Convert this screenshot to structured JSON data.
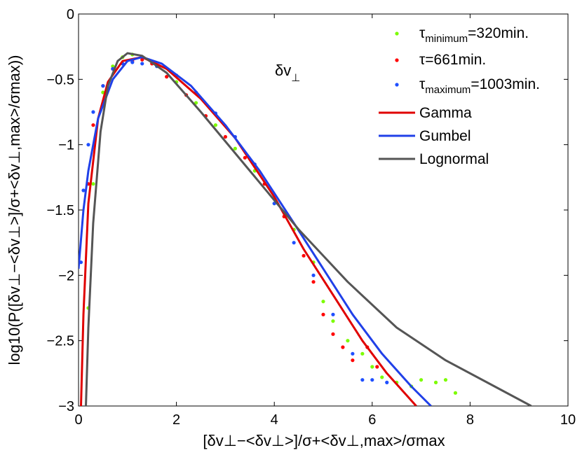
{
  "chart_data": {
    "type": "scatter",
    "xlabel": "[δv⊥−<δv⊥>]/σ+<δv⊥,max>/σmax",
    "ylabel": "log10(P([δv⊥−<δv⊥>]/σ+<δv⊥,max>/σmax))",
    "xlim": [
      0,
      10
    ],
    "ylim": [
      -3,
      0
    ],
    "x_ticks": [
      "0",
      "2",
      "4",
      "6",
      "8",
      "10"
    ],
    "y_ticks": [
      "0",
      "−0.5",
      "−1",
      "−1.5",
      "−2",
      "−2.5",
      "−3"
    ],
    "annotation": {
      "main": "δv",
      "sub": "⊥"
    },
    "legend": [
      {
        "tau": "τ",
        "sub": "minimum",
        "rest": "=320min.",
        "color": "#7cfc00",
        "kind": "marker"
      },
      {
        "tau": "τ",
        "sub": "",
        "rest": "=661min.",
        "color": "#ff0000",
        "kind": "marker"
      },
      {
        "tau": "τ",
        "sub": "maximum",
        "rest": "=1003min.",
        "color": "#1f4fff",
        "kind": "marker"
      },
      {
        "label": "Gamma",
        "color": "#e00000",
        "kind": "line"
      },
      {
        "label": "Gumbel",
        "color": "#2040e8",
        "kind": "line"
      },
      {
        "label": "Lognormal",
        "color": "#555555",
        "kind": "line"
      }
    ],
    "series": [
      {
        "name": "τminimum=320min.",
        "color": "#7cfc00",
        "x": [
          0.2,
          0.3,
          0.5,
          0.7,
          0.9,
          1.1,
          1.3,
          1.6,
          2.0,
          2.4,
          2.8,
          3.2,
          3.6,
          4.0,
          4.4,
          4.8,
          5.0,
          5.2,
          5.5,
          5.8,
          6.0,
          6.2,
          6.5,
          6.8,
          7.0,
          7.3,
          7.5,
          7.7
        ],
        "y": [
          -2.25,
          -1.3,
          -0.6,
          -0.4,
          -0.33,
          -0.31,
          -0.33,
          -0.4,
          -0.52,
          -0.68,
          -0.85,
          -1.03,
          -1.2,
          -1.45,
          -1.65,
          -1.9,
          -2.2,
          -2.35,
          -2.5,
          -2.6,
          -2.7,
          -2.78,
          -2.82,
          -2.85,
          -2.8,
          -2.82,
          -2.8,
          -2.9
        ]
      },
      {
        "name": "τ=661min.",
        "color": "#ff0000",
        "x": [
          0.2,
          0.3,
          0.5,
          0.7,
          0.9,
          1.1,
          1.3,
          1.5,
          1.8,
          2.2,
          2.6,
          3.0,
          3.4,
          3.8,
          4.2,
          4.6,
          4.8,
          5.0,
          5.2,
          5.4,
          5.6,
          5.9,
          6.1
        ],
        "y": [
          -1.3,
          -0.85,
          -0.55,
          -0.42,
          -0.38,
          -0.36,
          -0.35,
          -0.38,
          -0.48,
          -0.62,
          -0.78,
          -0.94,
          -1.1,
          -1.3,
          -1.55,
          -1.85,
          -2.05,
          -2.3,
          -2.45,
          -2.55,
          -2.65,
          -2.55,
          -2.7
        ]
      },
      {
        "name": "τmaximum=1003min.",
        "color": "#1f4fff",
        "x": [
          0.05,
          0.1,
          0.2,
          0.3,
          0.5,
          0.7,
          0.9,
          1.1,
          1.3,
          1.6,
          2.0,
          2.4,
          2.8,
          3.2,
          3.6,
          4.0,
          4.4,
          4.8,
          5.2,
          5.6,
          5.8,
          6.0,
          6.3
        ],
        "y": [
          -1.9,
          -1.35,
          -1.0,
          -0.75,
          -0.55,
          -0.42,
          -0.38,
          -0.37,
          -0.38,
          -0.4,
          -0.47,
          -0.6,
          -0.76,
          -0.94,
          -1.15,
          -1.45,
          -1.75,
          -2.0,
          -2.3,
          -2.6,
          -2.8,
          -2.8,
          -2.82
        ]
      },
      {
        "name": "Gamma",
        "color": "#e00000",
        "kind": "line",
        "x": [
          0.05,
          0.1,
          0.2,
          0.4,
          0.6,
          0.9,
          1.3,
          1.8,
          2.5,
          3.2,
          4.0,
          4.6,
          5.2,
          5.8,
          6.3,
          6.9
        ],
        "y": [
          -3.0,
          -2.3,
          -1.45,
          -0.8,
          -0.52,
          -0.36,
          -0.33,
          -0.42,
          -0.65,
          -0.95,
          -1.4,
          -1.8,
          -2.15,
          -2.5,
          -2.75,
          -3.0
        ]
      },
      {
        "name": "Gumbel",
        "color": "#2040e8",
        "kind": "line",
        "x": [
          0.0,
          0.1,
          0.2,
          0.4,
          0.7,
          1.0,
          1.3,
          1.7,
          2.3,
          3.0,
          3.7,
          4.4,
          5.0,
          5.6,
          6.2,
          6.8,
          7.2
        ],
        "y": [
          -1.95,
          -1.5,
          -1.2,
          -0.8,
          -0.5,
          -0.36,
          -0.33,
          -0.38,
          -0.55,
          -0.85,
          -1.2,
          -1.6,
          -1.95,
          -2.3,
          -2.6,
          -2.85,
          -3.0
        ]
      },
      {
        "name": "Lognormal",
        "color": "#555555",
        "kind": "line",
        "x": [
          0.15,
          0.2,
          0.3,
          0.45,
          0.6,
          0.8,
          1.0,
          1.3,
          1.8,
          2.5,
          3.5,
          4.5,
          5.5,
          6.5,
          7.5,
          8.5,
          9.25
        ],
        "y": [
          -3.0,
          -2.4,
          -1.6,
          -0.9,
          -0.55,
          -0.36,
          -0.3,
          -0.32,
          -0.45,
          -0.75,
          -1.2,
          -1.65,
          -2.05,
          -2.4,
          -2.65,
          -2.85,
          -3.0
        ]
      }
    ]
  }
}
